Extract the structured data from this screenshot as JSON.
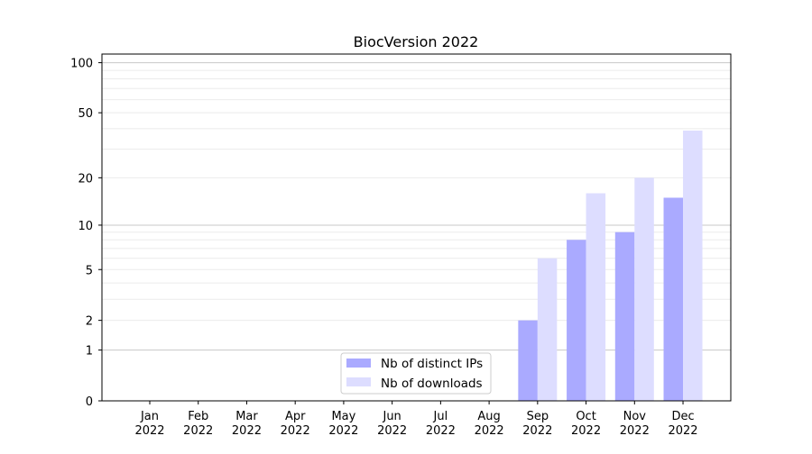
{
  "chart_data": {
    "type": "bar",
    "title": "BiocVersion 2022",
    "xlabel": "",
    "ylabel": "",
    "yscale": "log(1+y)",
    "ylim": [
      0,
      116
    ],
    "grid": true,
    "legend_position": "bottom-center",
    "categories": [
      "Jan\n2022",
      "Feb\n2022",
      "Mar\n2022",
      "Apr\n2022",
      "May\n2022",
      "Jun\n2022",
      "Jul\n2022",
      "Aug\n2022",
      "Sep\n2022",
      "Oct\n2022",
      "Nov\n2022",
      "Dec\n2022"
    ],
    "yticks": [
      0,
      1,
      2,
      5,
      10,
      20,
      50,
      100
    ],
    "series": [
      {
        "name": "Nb of distinct IPs",
        "color": "#aaaaff",
        "values": [
          0,
          0,
          0,
          0,
          0,
          0,
          0,
          0,
          2,
          8,
          9,
          15
        ]
      },
      {
        "name": "Nb of downloads",
        "color": "#ddddff",
        "values": [
          0,
          0,
          0,
          0,
          0,
          0,
          0,
          0,
          6,
          16,
          20,
          39
        ]
      }
    ]
  }
}
